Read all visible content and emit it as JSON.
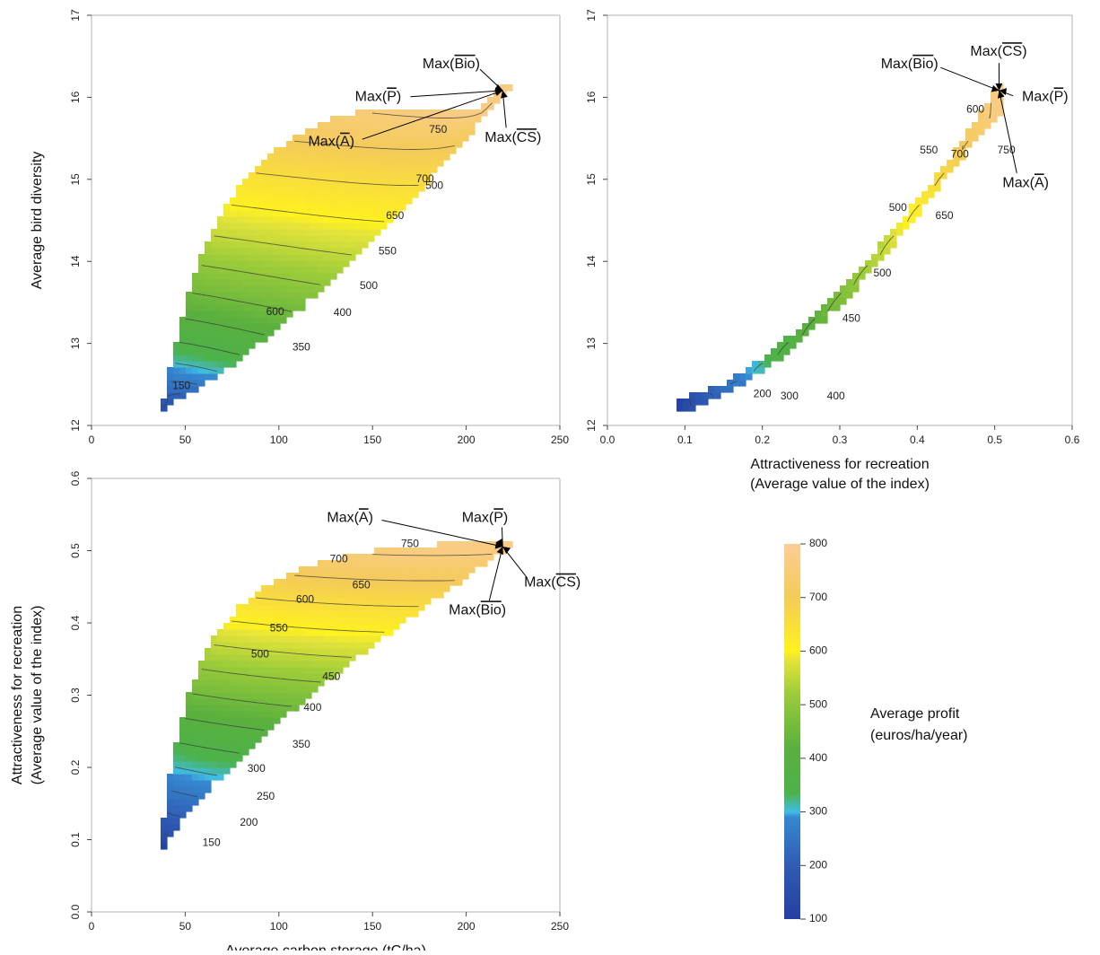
{
  "chart_data": [
    {
      "type": "heatmap",
      "panel": "top-left",
      "x_field": "carbon",
      "y_field": "bird",
      "xlabel": "",
      "ylabel": "Average bird diversity",
      "xlim": [
        0,
        250
      ],
      "ylim": [
        12,
        17
      ],
      "x_ticks": [
        "0",
        "50",
        "100",
        "150",
        "200",
        "250"
      ],
      "y_ticks": [
        "12",
        "13",
        "14",
        "15",
        "16",
        "17"
      ],
      "contour_labels": [
        {
          "text": "150",
          "x": 48,
          "y": 12.48
        },
        {
          "text": "350",
          "x": 112,
          "y": 12.95
        },
        {
          "text": "400",
          "x": 134,
          "y": 13.37
        },
        {
          "text": "500",
          "x": 148,
          "y": 13.7
        },
        {
          "text": "550",
          "x": 158,
          "y": 14.12
        },
        {
          "text": "600",
          "x": 98,
          "y": 13.38
        },
        {
          "text": "650",
          "x": 162,
          "y": 14.55
        },
        {
          "text": "700",
          "x": 178,
          "y": 15.0
        },
        {
          "text": "500",
          "x": 183,
          "y": 14.92
        },
        {
          "text": "750",
          "x": 185,
          "y": 15.6
        }
      ],
      "annotations": [
        {
          "text": "Max(Bio)",
          "x": 192,
          "y": 16.4
        },
        {
          "text": "Max(P)",
          "x": 153,
          "y": 16.0
        },
        {
          "text": "Max(A)",
          "x": 128,
          "y": 15.45
        },
        {
          "text": "Max(CS)",
          "x": 225,
          "y": 15.5
        }
      ]
    },
    {
      "type": "heatmap",
      "panel": "top-right",
      "x_field": "attract",
      "y_field": "bird",
      "xlabel": "Attractiveness for recreation\n(Average value of the index)",
      "ylabel": "",
      "xlim": [
        0.0,
        0.6
      ],
      "ylim": [
        12,
        17
      ],
      "x_ticks": [
        "0.0",
        "0.1",
        "0.2",
        "0.3",
        "0.4",
        "0.5",
        "0.6"
      ],
      "y_ticks": [
        "12",
        "13",
        "14",
        "15",
        "16",
        "17"
      ],
      "contour_labels": [
        {
          "text": "200",
          "x": 0.2,
          "y": 12.38
        },
        {
          "text": "300",
          "x": 0.235,
          "y": 12.35
        },
        {
          "text": "400",
          "x": 0.295,
          "y": 12.35
        },
        {
          "text": "450",
          "x": 0.315,
          "y": 13.3
        },
        {
          "text": "500",
          "x": 0.355,
          "y": 13.85
        },
        {
          "text": "500",
          "x": 0.375,
          "y": 14.65
        },
        {
          "text": "550",
          "x": 0.415,
          "y": 15.35
        },
        {
          "text": "650",
          "x": 0.435,
          "y": 14.55
        },
        {
          "text": "700",
          "x": 0.455,
          "y": 15.3
        },
        {
          "text": "750",
          "x": 0.515,
          "y": 15.35
        },
        {
          "text": "600",
          "x": 0.475,
          "y": 15.85
        }
      ],
      "annotations": [
        {
          "text": "Max(Bio)",
          "x": 0.39,
          "y": 16.4
        },
        {
          "text": "Max(CS)",
          "x": 0.505,
          "y": 16.55
        },
        {
          "text": "Max(P)",
          "x": 0.565,
          "y": 16.0
        },
        {
          "text": "Max(A)",
          "x": 0.54,
          "y": 14.95
        }
      ]
    },
    {
      "type": "heatmap",
      "panel": "bottom-left",
      "x_field": "carbon",
      "y_field": "attract",
      "xlabel": "Average carbon storage (tC/ha)",
      "ylabel": "Attractiveness for recreation\n(Average value of the index)",
      "xlim": [
        0,
        250
      ],
      "ylim": [
        0.0,
        0.6
      ],
      "x_ticks": [
        "0",
        "50",
        "100",
        "150",
        "200",
        "250"
      ],
      "y_ticks": [
        "0.0",
        "0.1",
        "0.2",
        "0.3",
        "0.4",
        "0.5",
        "0.6"
      ],
      "contour_labels": [
        {
          "text": "150",
          "x": 64,
          "y": 0.095
        },
        {
          "text": "200",
          "x": 84,
          "y": 0.123
        },
        {
          "text": "250",
          "x": 93,
          "y": 0.159
        },
        {
          "text": "300",
          "x": 88,
          "y": 0.198
        },
        {
          "text": "350",
          "x": 112,
          "y": 0.231
        },
        {
          "text": "400",
          "x": 118,
          "y": 0.282
        },
        {
          "text": "450",
          "x": 128,
          "y": 0.325
        },
        {
          "text": "500",
          "x": 90,
          "y": 0.356
        },
        {
          "text": "550",
          "x": 100,
          "y": 0.392
        },
        {
          "text": "600",
          "x": 114,
          "y": 0.432
        },
        {
          "text": "650",
          "x": 144,
          "y": 0.452
        },
        {
          "text": "700",
          "x": 132,
          "y": 0.488
        },
        {
          "text": "750",
          "x": 170,
          "y": 0.509
        }
      ],
      "annotations": [
        {
          "text": "Max(A)",
          "x": 138,
          "y": 0.545
        },
        {
          "text": "Max(P)",
          "x": 210,
          "y": 0.545
        },
        {
          "text": "Max(CS)",
          "x": 246,
          "y": 0.455
        },
        {
          "text": "Max(Bio)",
          "x": 206,
          "y": 0.417
        }
      ]
    }
  ],
  "colorbar": {
    "title_line1": "Average profit",
    "title_line2": "(euros/ha/year)",
    "ticks": [
      "100",
      "200",
      "300",
      "400",
      "500",
      "600",
      "700",
      "800"
    ],
    "range": [
      100,
      800
    ],
    "stops": [
      {
        "value": 100,
        "color": "#2540a0"
      },
      {
        "value": 200,
        "color": "#2f5cb4"
      },
      {
        "value": 290,
        "color": "#3688d0"
      },
      {
        "value": 300,
        "color": "#3fbde8"
      },
      {
        "value": 335,
        "color": "#4cb24a"
      },
      {
        "value": 420,
        "color": "#5ab03e"
      },
      {
        "value": 520,
        "color": "#9ccc3a"
      },
      {
        "value": 585,
        "color": "#e6e43a"
      },
      {
        "value": 600,
        "color": "#fff21e"
      },
      {
        "value": 700,
        "color": "#f4cb58"
      },
      {
        "value": 800,
        "color": "#fbcd96"
      }
    ]
  },
  "max_labels": {
    "Bio": "Bio",
    "P": "P",
    "A": "A",
    "CS": "CS",
    "prefix": "Max(",
    "suffix": ")"
  }
}
